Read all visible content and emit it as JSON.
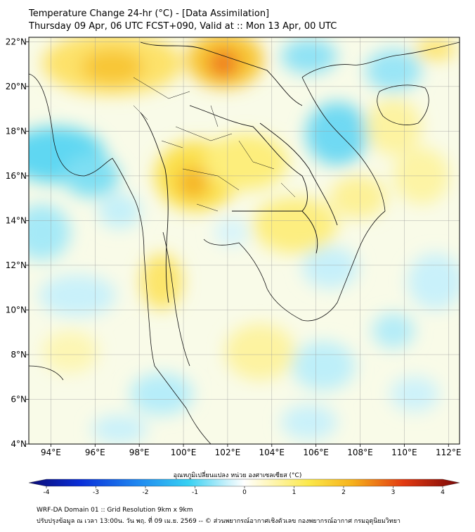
{
  "title_line1": "Temperature Change 24-hr (°C) - [Data Assimilation]",
  "title_line2": "Thursday 09 Apr, 06 UTC FCST+090, Valid at :: Mon 13 Apr, 00 UTC",
  "map": {
    "lon_range": [
      93,
      112.5
    ],
    "lat_range": [
      4,
      22.2
    ],
    "lon_ticks": [
      94,
      96,
      98,
      100,
      102,
      104,
      106,
      108,
      110,
      112
    ],
    "lon_tick_labels": [
      "94°E",
      "96°E",
      "98°E",
      "100°E",
      "102°E",
      "104°E",
      "106°E",
      "108°E",
      "110°E",
      "112°E"
    ],
    "lat_ticks": [
      4,
      6,
      8,
      10,
      12,
      14,
      16,
      18,
      20,
      22
    ],
    "lat_tick_labels": [
      "4°N",
      "6°N",
      "8°N",
      "10°N",
      "12°N",
      "14°N",
      "16°N",
      "18°N",
      "20°N",
      "22°N"
    ]
  },
  "colorbar": {
    "title": "อุณหภูมิเปลี่ยนแปลง หน่วย องศาเซลเซียส (°C)",
    "min": -4,
    "max": 4,
    "ticks": [
      -4,
      -3,
      -2,
      -1,
      0,
      1,
      2,
      3,
      4
    ],
    "tick_labels": [
      "-4",
      "-3",
      "-2",
      "-1",
      "0",
      "1",
      "2",
      "3",
      "4"
    ]
  },
  "footer_line1": "WRF-DA Domain 01 :: Grid Resolution 9km x 9km",
  "footer_line2": "ปรับปรุงข้อมูล ณ เวลา 13:00น. วัน พฤ. ที่ 09 เม.ย. 2569 -- © ส่วนพยากรณ์อากาศเชิงตัวเลข กองพยากรณ์อากาศ กรมอุตุนิยมวิทยา"
}
